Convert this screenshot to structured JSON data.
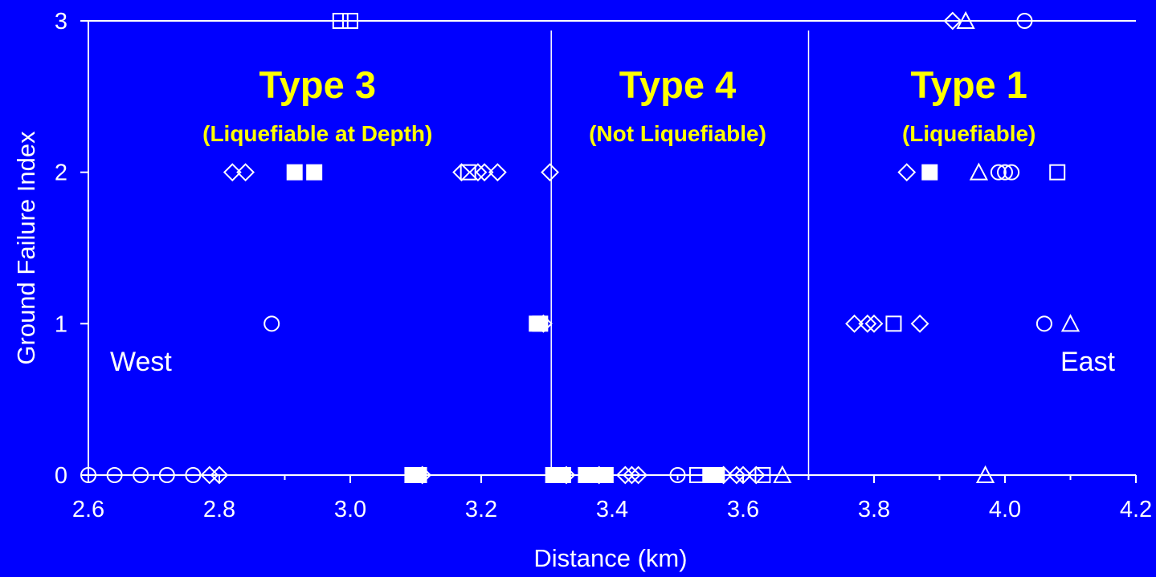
{
  "chart_data": {
    "type": "scatter",
    "xlabel": "Distance (km)",
    "ylabel": "Ground Failure Index",
    "xlim": [
      2.6,
      4.2
    ],
    "ylim": [
      0,
      3
    ],
    "x_ticks": [
      "2.6",
      "2.8",
      "3.0",
      "3.2",
      "3.4",
      "3.6",
      "3.8",
      "4.0",
      "4.2"
    ],
    "y_ticks": [
      "0",
      "1",
      "2",
      "3"
    ],
    "grid": false,
    "colors": {
      "background": "#0000ff",
      "axes": "#ffffff",
      "markers": "#ffffff",
      "region_text": "#ffff00"
    },
    "boundaries": [
      3.307,
      3.7
    ],
    "regions": [
      {
        "title": "Type 3",
        "subtitle": "(Liquefiable at Depth)",
        "x_center": 2.95
      },
      {
        "title": "Type 4",
        "subtitle": "(Not Liquefiable)",
        "x_center": 3.5
      },
      {
        "title": "Type 1",
        "subtitle": "(Liquefiable)",
        "x_center": 3.945
      }
    ],
    "side_labels": {
      "left": "West",
      "right": "East"
    },
    "marker_types": [
      "circle",
      "diamond",
      "square-open",
      "square-filled",
      "triangle"
    ],
    "series": [
      {
        "marker": "circle",
        "points": [
          [
            2.6,
            0
          ],
          [
            2.64,
            0
          ],
          [
            2.68,
            0
          ],
          [
            2.72,
            0
          ],
          [
            2.76,
            0
          ],
          [
            2.88,
            1
          ],
          [
            3.5,
            0
          ],
          [
            3.99,
            2
          ],
          [
            4.0,
            2
          ],
          [
            4.01,
            2
          ],
          [
            4.03,
            3
          ],
          [
            4.06,
            1
          ]
        ]
      },
      {
        "marker": "diamond",
        "points": [
          [
            2.785,
            0
          ],
          [
            2.8,
            0
          ],
          [
            2.82,
            2
          ],
          [
            2.84,
            2
          ],
          [
            3.11,
            0
          ],
          [
            3.17,
            2
          ],
          [
            3.195,
            2
          ],
          [
            3.205,
            2
          ],
          [
            3.225,
            2
          ],
          [
            3.295,
            1
          ],
          [
            3.305,
            2
          ],
          [
            3.33,
            0
          ],
          [
            3.38,
            0
          ],
          [
            3.42,
            0
          ],
          [
            3.43,
            0
          ],
          [
            3.44,
            0
          ],
          [
            3.57,
            0
          ],
          [
            3.59,
            0
          ],
          [
            3.6,
            0
          ],
          [
            3.62,
            0
          ],
          [
            3.77,
            1
          ],
          [
            3.79,
            1
          ],
          [
            3.8,
            1
          ],
          [
            3.85,
            2
          ],
          [
            3.87,
            1
          ],
          [
            3.92,
            3
          ]
        ]
      },
      {
        "marker": "square-open",
        "points": [
          [
            2.985,
            3
          ],
          [
            3.0,
            3
          ],
          [
            3.18,
            2
          ],
          [
            3.53,
            0
          ],
          [
            3.63,
            0
          ],
          [
            3.83,
            1
          ],
          [
            4.08,
            2
          ]
        ]
      },
      {
        "marker": "square-filled",
        "points": [
          [
            2.915,
            2
          ],
          [
            2.945,
            2
          ],
          [
            3.095,
            0
          ],
          [
            3.105,
            0
          ],
          [
            3.285,
            1
          ],
          [
            3.29,
            1
          ],
          [
            3.31,
            0
          ],
          [
            3.325,
            0
          ],
          [
            3.36,
            0
          ],
          [
            3.37,
            0
          ],
          [
            3.38,
            0
          ],
          [
            3.39,
            0
          ],
          [
            3.55,
            0
          ],
          [
            3.56,
            0
          ],
          [
            3.885,
            2
          ]
        ]
      },
      {
        "marker": "triangle",
        "points": [
          [
            3.66,
            0
          ],
          [
            3.94,
            3
          ],
          [
            3.96,
            2
          ],
          [
            3.97,
            0
          ],
          [
            4.1,
            1
          ]
        ]
      }
    ]
  }
}
